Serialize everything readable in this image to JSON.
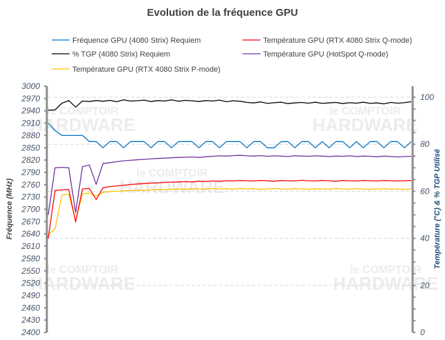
{
  "watermark": "le COMPTOIR du HARDWARE",
  "chart_data": {
    "type": "line",
    "title": "Evolution de la fréquence GPU",
    "ylabel": "Fréquence (MHz)",
    "y2label": "Température (°C) & % TGP Utilisé",
    "xlabel": "",
    "ylim": [
      2400,
      3000
    ],
    "y2lim": [
      0,
      104.7
    ],
    "yticks": [
      3000,
      2970,
      2940,
      2910,
      2880,
      2850,
      2820,
      2790,
      2760,
      2730,
      2700,
      2670,
      2640,
      2610,
      2580,
      2550,
      2520,
      2490,
      2460,
      2430,
      2400
    ],
    "y2ticks": [
      0,
      20,
      40,
      60,
      80,
      100
    ],
    "grid": "horizontal dashed at right-axis ticks",
    "legend_position": "top",
    "series": [
      {
        "name": "Fréquence GPU (4080 Strix) Requiem",
        "axis": "left",
        "color": "#0070c0",
        "values": [
          2910,
          2892,
          2880,
          2880,
          2880,
          2880,
          2865,
          2865,
          2850,
          2865,
          2865,
          2850,
          2865,
          2865,
          2865,
          2850,
          2865,
          2865,
          2850,
          2865,
          2865,
          2865,
          2850,
          2865,
          2865,
          2850,
          2865,
          2865,
          2865,
          2850,
          2865,
          2865,
          2850,
          2850,
          2865,
          2865,
          2850,
          2865,
          2865,
          2850,
          2865,
          2850,
          2865,
          2865,
          2850,
          2865,
          2850,
          2865,
          2865,
          2850,
          2865,
          2865,
          2850,
          2865
        ]
      },
      {
        "name": "% TGP (4080 Strix) Requiem",
        "axis": "right",
        "color": "#000000",
        "values": [
          94.5,
          94.6,
          97.5,
          98.6,
          95.8,
          98.4,
          98.2,
          98.6,
          98.3,
          98.7,
          98.1,
          98.9,
          98.4,
          98.5,
          98.8,
          98.2,
          98.6,
          98.4,
          98.9,
          98.3,
          98.7,
          98.5,
          98.2,
          98.6,
          98.4,
          98.8,
          98.1,
          98.5,
          98.3,
          97.8,
          97.6,
          98.0,
          97.4,
          97.7,
          97.9,
          97.3,
          97.6,
          97.8,
          97.5,
          97.9,
          97.4,
          97.6,
          97.8,
          97.3,
          97.7,
          97.5,
          97.9,
          97.4,
          97.6,
          97.2,
          97.8,
          97.5,
          97.7,
          98.1
        ]
      },
      {
        "name": "Température GPU (RTX 4080 Strix Q-mode)",
        "axis": "right",
        "color": "#ff0000",
        "values": [
          40.0,
          60.4,
          60.6,
          60.8,
          47.0,
          61.0,
          61.2,
          56.5,
          61.5,
          62.0,
          62.3,
          62.6,
          62.9,
          63.1,
          63.3,
          63.5,
          63.6,
          63.8,
          63.9,
          64.0,
          64.1,
          64.0,
          64.3,
          64.2,
          64.4,
          64.3,
          64.5,
          64.4,
          64.6,
          64.5,
          64.4,
          64.6,
          64.5,
          64.3,
          64.6,
          64.5,
          64.4,
          64.7,
          64.5,
          64.4,
          64.6,
          64.5,
          64.3,
          64.6,
          64.5,
          64.4,
          64.6,
          64.5,
          64.4,
          64.6,
          64.5,
          64.4,
          64.5,
          64.6
        ]
      },
      {
        "name": "Température GPU (HotSpot Q-mode)",
        "axis": "right",
        "color": "#7030a0",
        "values": [
          50.0,
          70.0,
          70.2,
          70.0,
          51.0,
          70.5,
          71.2,
          63.0,
          71.8,
          72.2,
          72.6,
          73.0,
          73.2,
          73.4,
          73.6,
          73.8,
          74.0,
          74.1,
          74.3,
          74.4,
          74.5,
          74.6,
          74.4,
          74.7,
          74.9,
          75.1,
          75.0,
          75.2,
          75.3,
          75.1,
          75.0,
          75.2,
          74.9,
          75.1,
          75.0,
          74.8,
          75.1,
          75.0,
          74.9,
          75.1,
          75.0,
          74.8,
          75.0,
          74.9,
          75.1,
          74.8,
          75.0,
          74.9,
          74.7,
          75.0,
          74.8,
          74.6,
          74.8,
          74.9
        ]
      },
      {
        "name": "Température GPU (RTX 4080 Strix P-mode)",
        "axis": "right",
        "color": "#ffc000",
        "values": [
          41.6,
          44.0,
          58.4,
          58.8,
          47.5,
          58.9,
          59.3,
          58.0,
          59.6,
          59.9,
          60.0,
          60.2,
          60.3,
          60.5,
          60.4,
          60.6,
          60.8,
          60.7,
          60.9,
          61.0,
          60.8,
          61.1,
          61.0,
          60.9,
          61.2,
          61.0,
          61.1,
          60.9,
          61.2,
          61.0,
          61.1,
          60.8,
          61.0,
          61.2,
          61.0,
          60.9,
          61.1,
          61.0,
          60.8,
          61.1,
          61.0,
          60.9,
          61.2,
          61.0,
          60.9,
          61.1,
          61.0,
          60.8,
          61.0,
          61.1,
          60.9,
          61.0,
          60.8,
          61.0
        ]
      }
    ],
    "legend_order": [
      0,
      2,
      1,
      3,
      4
    ]
  }
}
